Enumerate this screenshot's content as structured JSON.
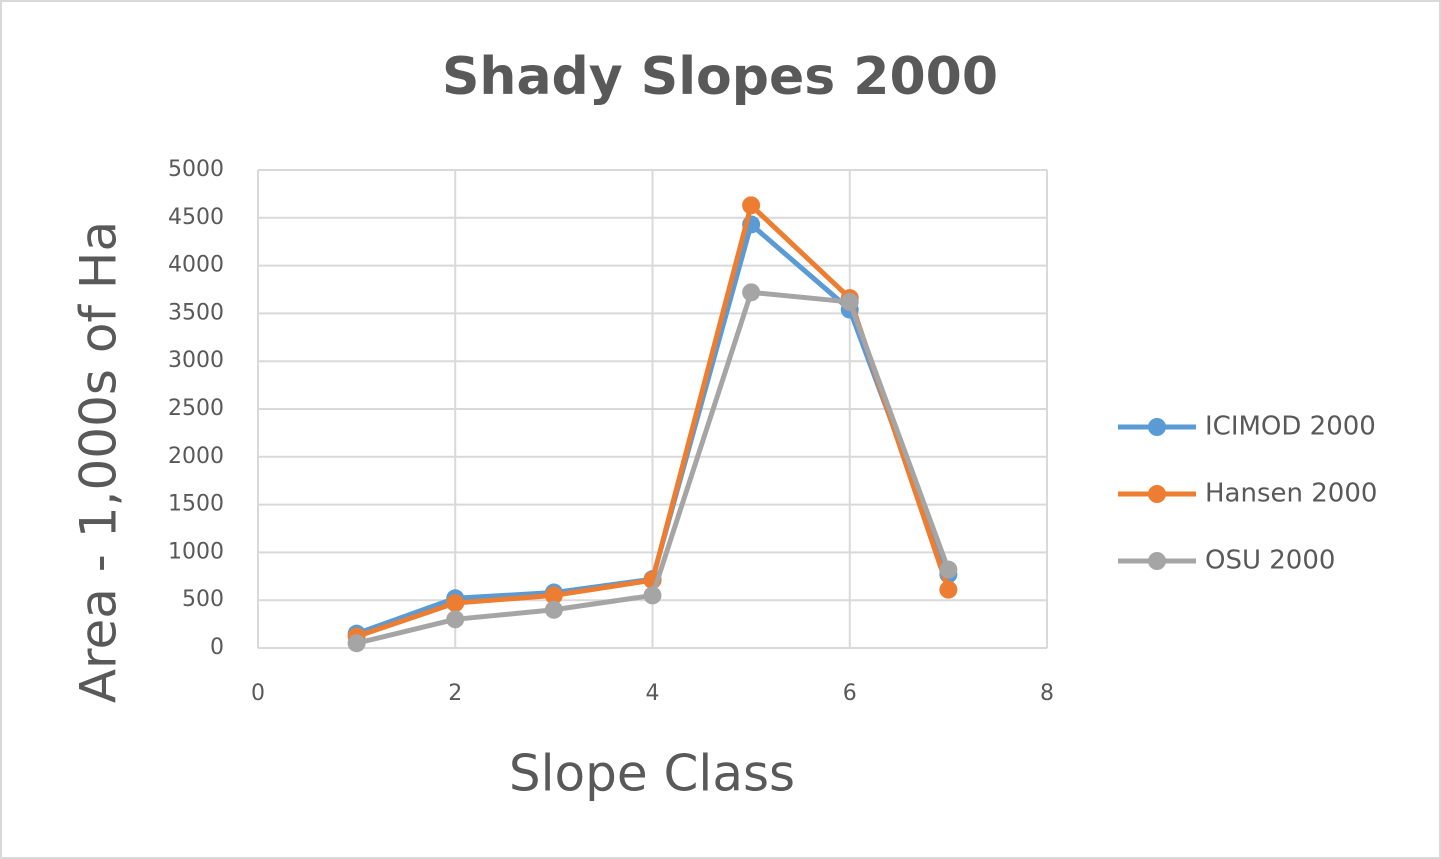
{
  "chart_data": {
    "type": "line",
    "title": "Shady Slopes 2000",
    "x_label": "Slope Class",
    "y_label": "Area - 1,000s of Ha",
    "x": [
      1,
      2,
      3,
      4,
      5,
      6,
      7
    ],
    "series": [
      {
        "name": "ICIMOD 2000",
        "color": "#5b9bd5",
        "values": [
          150,
          520,
          580,
          720,
          4430,
          3540,
          770
        ]
      },
      {
        "name": "Hansen 2000",
        "color": "#ed7d31",
        "values": [
          120,
          470,
          550,
          710,
          4630,
          3660,
          610
        ]
      },
      {
        "name": "OSU 2000",
        "color": "#a5a5a5",
        "values": [
          50,
          300,
          400,
          550,
          3720,
          3620,
          820
        ]
      }
    ],
    "xlim": [
      0,
      8
    ],
    "xticks": [
      0,
      2,
      4,
      6,
      8
    ],
    "ylim": [
      0,
      5000
    ],
    "yticks": [
      0,
      500,
      1000,
      1500,
      2000,
      2500,
      3000,
      3500,
      4000,
      4500,
      5000
    ],
    "grid": true,
    "legend": "right"
  }
}
